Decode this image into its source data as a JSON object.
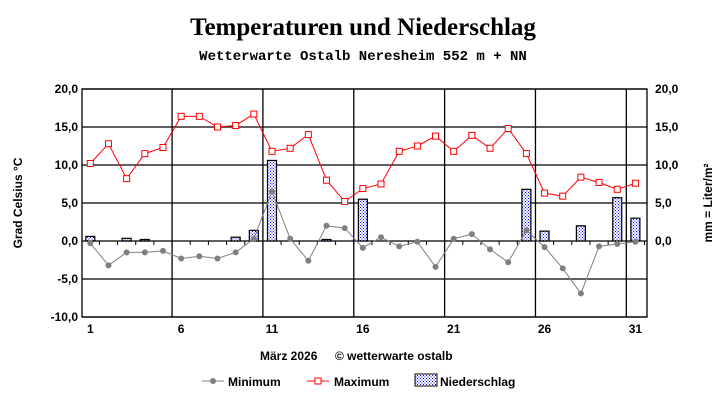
{
  "chart_data": {
    "type": "line",
    "title": "Temperaturen und  Niederschlag",
    "subtitle": "Wetterwarte Ostalb Neresheim 552 m + NN",
    "xlabel": "März 2026",
    "credit": "© wetterwarte ostalb",
    "ylabel_left": "Grad Celsius °C",
    "ylabel_right": "mm = Liter/m²",
    "ylim": [
      -10,
      20
    ],
    "y_ticks_left": [
      "20,0",
      "15,0",
      "10,0",
      "5,0",
      "0,0",
      "-5,0",
      "-10,0"
    ],
    "y_ticks_right": [
      "20,0",
      "15,0",
      "10,0",
      "5,0",
      "0,0"
    ],
    "x_ticks": [
      "1",
      "6",
      "11",
      "16",
      "21",
      "26",
      "31"
    ],
    "x": [
      1,
      2,
      3,
      4,
      5,
      6,
      7,
      8,
      9,
      10,
      11,
      12,
      13,
      14,
      15,
      16,
      17,
      18,
      19,
      20,
      21,
      22,
      23,
      24,
      25,
      26,
      27,
      28,
      29,
      30,
      31
    ],
    "series": [
      {
        "name": "Minimum",
        "type": "line",
        "color": "#808080",
        "values": [
          -0.3,
          -3.2,
          -1.5,
          -1.5,
          -1.3,
          -2.3,
          -2.0,
          -2.3,
          -1.5,
          0.3,
          6.5,
          0.3,
          -2.6,
          2.0,
          1.7,
          -0.9,
          0.5,
          -0.7,
          -0.1,
          -3.4,
          0.3,
          0.9,
          -1.1,
          -2.8,
          1.4,
          -0.8,
          -3.6,
          -6.9,
          -0.7,
          -0.4,
          -0.1
        ]
      },
      {
        "name": "Maximum",
        "type": "line",
        "color": "#ff0000",
        "values": [
          10.2,
          12.8,
          8.2,
          11.5,
          12.3,
          16.4,
          16.4,
          15.0,
          15.2,
          16.7,
          11.8,
          12.2,
          14.0,
          8.0,
          5.2,
          6.9,
          7.5,
          11.8,
          12.5,
          13.8,
          11.8,
          13.9,
          12.2,
          14.8,
          11.5,
          6.3,
          5.9,
          8.4,
          7.7,
          6.8,
          7.6
        ]
      },
      {
        "name": "Niederschlag",
        "type": "bar",
        "color": "#0000ff",
        "values": [
          0.6,
          0,
          0.35,
          0.2,
          0,
          0,
          0,
          0,
          0.5,
          1.4,
          10.6,
          0,
          0,
          0.2,
          0,
          5.5,
          0,
          0,
          0,
          0,
          0,
          0,
          0,
          0,
          6.8,
          1.3,
          0,
          2.0,
          0,
          5.7,
          3.0
        ]
      }
    ],
    "grid": true,
    "legend": "bottom"
  }
}
